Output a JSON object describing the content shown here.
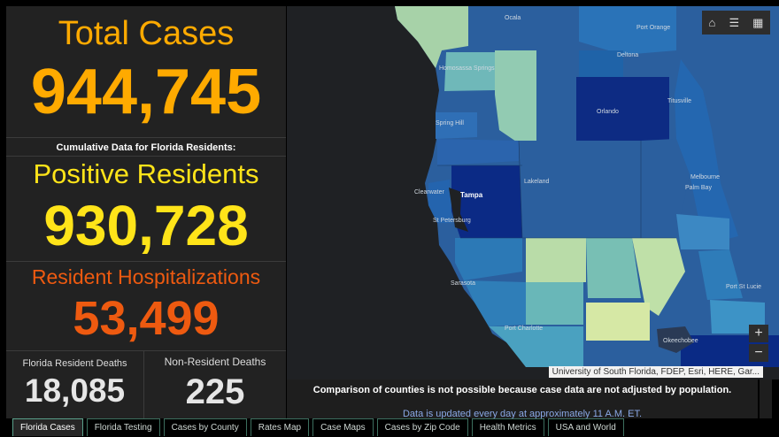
{
  "summary": {
    "total_cases_label": "Total Cases",
    "total_cases_value": "944,745",
    "cumulative_caption": "Cumulative Data for Florida Residents:",
    "positive_label": "Positive Residents",
    "positive_value": "930,728",
    "hosp_label": "Resident Hospitalizations",
    "hosp_value": "53,499",
    "resident_deaths_label": "Florida Resident Deaths",
    "resident_deaths_value": "18,085",
    "nonresident_deaths_label": "Non-Resident Deaths",
    "nonresident_deaths_value": "225"
  },
  "map": {
    "cities": [
      "Ocala",
      "Port Orange",
      "Deltona",
      "Homosassa Springs",
      "Spring Hill",
      "Orlando",
      "Titusville",
      "Lakeland",
      "Clearwater",
      "Tampa",
      "St Petersburg",
      "Melbourne",
      "Palm Bay",
      "Sarasota",
      "Port St Lucie",
      "Port Charlotte",
      "Okeechobee"
    ],
    "attribution": "University of South Florida, FDEP, Esri, HERE, Gar...",
    "toolbar_icons": [
      "home-icon",
      "legend-icon",
      "basemap-icon"
    ],
    "zoom_in": "+",
    "zoom_out": "−"
  },
  "notes": {
    "warning": "Comparison of counties is not possible because case data are not adjusted by population.",
    "update": "Data is updated every day at approximately 11 A.M. ET."
  },
  "tabs": [
    {
      "label": "Florida Cases",
      "active": true
    },
    {
      "label": "Florida Testing"
    },
    {
      "label": "Cases by County"
    },
    {
      "label": "Rates Map"
    },
    {
      "label": "Case Maps"
    },
    {
      "label": "Cases by Zip Code"
    },
    {
      "label": "Health Metrics"
    },
    {
      "label": "USA and World"
    }
  ],
  "colors": {
    "total_cases": "#ffaa00",
    "positive": "#ffe419",
    "hospitalizations": "#ee5a10"
  }
}
